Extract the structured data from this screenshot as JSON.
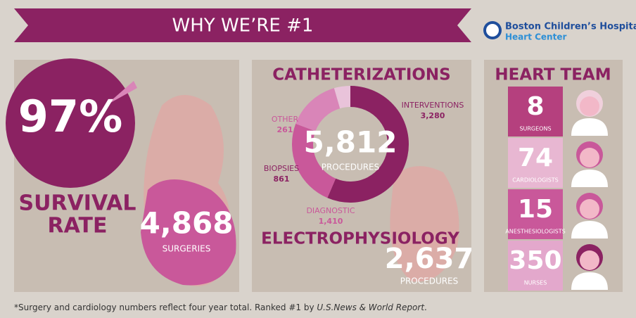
{
  "banner": {
    "title": "WHY WE’RE #1"
  },
  "logo": {
    "name": "Boston Children’s Hospital",
    "sub": "Heart Center"
  },
  "survival": {
    "value": "97%",
    "label_1": "SURVIVAL",
    "label_2": "RATE",
    "surgeries": "4,868",
    "surgeries_label": "SURGERIES"
  },
  "catheterizations": {
    "title": "CATHETERIZATIONS",
    "total": "5,812",
    "total_label": "PROCEDURES",
    "segments": [
      {
        "name": "INTERVENTIONS",
        "value": 3280,
        "value_label": "3,280",
        "color": "#8b2262"
      },
      {
        "name": "DIAGNOSTIC",
        "value": 1410,
        "value_label": "1,410",
        "color": "#c9589a"
      },
      {
        "name": "BIOPSIES",
        "value": 861,
        "value_label": "861",
        "color": "#d985b8"
      },
      {
        "name": "OTHER",
        "value": 261,
        "value_label": "261",
        "color": "#e9c3da"
      }
    ]
  },
  "electrophysiology": {
    "title": "ELECTROPHYSIOLOGY",
    "value": "2,637",
    "label": "PROCEDURES"
  },
  "heart_team": {
    "title": "HEART TEAM",
    "members": [
      {
        "count": "8",
        "role": "SURGEONS"
      },
      {
        "count": "74",
        "role": "CARDIOLOGISTS"
      },
      {
        "count": "15",
        "role": "ANESTHESIOLOGISTS"
      },
      {
        "count": "350",
        "role": "NURSES"
      }
    ]
  },
  "footnote": {
    "text": "*Surgery and cardiology numbers reflect four year total. Ranked #1 by ",
    "source": "U.S.News & World Report",
    "end": "."
  }
}
